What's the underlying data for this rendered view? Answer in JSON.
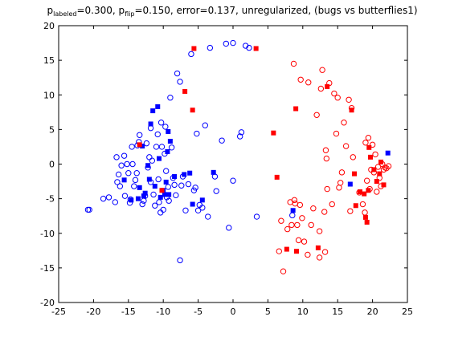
{
  "chart_data": {
    "type": "scatter",
    "title_parts": {
      "p1": "p",
      "sub1": "labeled",
      "mid1": "=0.300, p",
      "sub2": "flip",
      "rest": "=0.150, error=0.137, unregularized, (bugs vs butterflies1)"
    },
    "xlabel": "",
    "ylabel": "",
    "xlim": [
      -25,
      25
    ],
    "ylim": [
      -20,
      20
    ],
    "xticks": [
      -25,
      -20,
      -15,
      -10,
      -5,
      0,
      5,
      10,
      15,
      20,
      25
    ],
    "yticks": [
      -20,
      -15,
      -10,
      -5,
      0,
      5,
      10,
      15,
      20
    ],
    "grid": false,
    "colors": {
      "blue": "#0000ff",
      "red": "#ff0000",
      "axis": "#000000"
    },
    "series": [
      {
        "color": "blue",
        "marker": "open-circle",
        "points": [
          [
            -20.8,
            -6.6
          ],
          [
            -20.6,
            -6.6
          ],
          [
            -18.6,
            -5.0
          ],
          [
            -17.8,
            -4.8
          ],
          [
            -16.9,
            -5.5
          ],
          [
            -16.7,
            1.0
          ],
          [
            -16.6,
            -2.6
          ],
          [
            -16.4,
            -1.5
          ],
          [
            -16.2,
            -3.2
          ],
          [
            -16.0,
            -0.2
          ],
          [
            -15.6,
            1.2
          ],
          [
            -15.5,
            -4.6
          ],
          [
            -15.2,
            0.0
          ],
          [
            -15.0,
            -1.3
          ],
          [
            -14.8,
            -5.6
          ],
          [
            -14.7,
            -5.1
          ],
          [
            -14.5,
            2.5
          ],
          [
            -14.4,
            0.0
          ],
          [
            -14.2,
            -3.2
          ],
          [
            -14.0,
            -2.3
          ],
          [
            -13.8,
            -1.3
          ],
          [
            -13.7,
            2.7
          ],
          [
            -13.5,
            3.2
          ],
          [
            -13.4,
            4.2
          ],
          [
            -13.0,
            -5.8
          ],
          [
            -12.8,
            -5.3
          ],
          [
            -12.6,
            -4.6
          ],
          [
            -12.4,
            3.0
          ],
          [
            -12.2,
            -0.5
          ],
          [
            -12.0,
            1.0
          ],
          [
            -11.8,
            -2.6
          ],
          [
            -11.8,
            5.2
          ],
          [
            -11.6,
            0.5
          ],
          [
            -11.4,
            -4.4
          ],
          [
            -11.2,
            -6.0
          ],
          [
            -11.0,
            2.5
          ],
          [
            -10.8,
            4.3
          ],
          [
            -10.7,
            -2.2
          ],
          [
            -10.6,
            -5.5
          ],
          [
            -10.4,
            -7.0
          ],
          [
            -10.3,
            6.0
          ],
          [
            -10.2,
            2.5
          ],
          [
            -10.0,
            -6.6
          ],
          [
            -9.8,
            1.5
          ],
          [
            -9.7,
            5.4
          ],
          [
            -9.6,
            -1.0
          ],
          [
            -9.5,
            -4.8
          ],
          [
            -9.3,
            -3.3
          ],
          [
            -9.2,
            -5.3
          ],
          [
            -9.0,
            9.6
          ],
          [
            -8.8,
            2.4
          ],
          [
            -8.6,
            -2.0
          ],
          [
            -8.4,
            -3.0
          ],
          [
            -8.2,
            -4.5
          ],
          [
            -8.0,
            13.1
          ],
          [
            -7.6,
            -13.9
          ],
          [
            -7.6,
            11.9
          ],
          [
            -7.4,
            -3.1
          ],
          [
            -7.2,
            -1.8
          ],
          [
            -6.8,
            -6.7
          ],
          [
            -6.4,
            -2.9
          ],
          [
            -6.0,
            15.9
          ],
          [
            -5.6,
            -3.8
          ],
          [
            -5.4,
            -3.4
          ],
          [
            -5.2,
            4.4
          ],
          [
            -5.0,
            -6.7
          ],
          [
            -4.8,
            -5.9
          ],
          [
            -4.4,
            -6.3
          ],
          [
            -4.0,
            5.6
          ],
          [
            -3.6,
            -7.6
          ],
          [
            -3.3,
            16.8
          ],
          [
            -2.6,
            -1.8
          ],
          [
            -2.4,
            -3.9
          ],
          [
            -1.6,
            3.4
          ],
          [
            -1.0,
            17.4
          ],
          [
            -0.6,
            -9.2
          ],
          [
            0.0,
            17.5
          ],
          [
            0.0,
            -2.4
          ],
          [
            1.0,
            4.0
          ],
          [
            1.2,
            4.6
          ],
          [
            1.8,
            17.1
          ],
          [
            2.3,
            16.8
          ],
          [
            3.4,
            -7.6
          ],
          [
            8.5,
            -7.4
          ]
        ]
      },
      {
        "color": "blue",
        "marker": "filled-square",
        "points": [
          [
            -15.6,
            -2.3
          ],
          [
            -14.6,
            -5.2
          ],
          [
            -13.6,
            -5.0
          ],
          [
            -13.4,
            -3.4
          ],
          [
            -13.0,
            2.6
          ],
          [
            -12.8,
            -4.6
          ],
          [
            -12.6,
            -4.2
          ],
          [
            -12.2,
            -0.2
          ],
          [
            -12.0,
            -2.2
          ],
          [
            -11.8,
            5.8
          ],
          [
            -11.5,
            7.7
          ],
          [
            -11.2,
            -3.2
          ],
          [
            -10.8,
            8.3
          ],
          [
            -10.6,
            0.8
          ],
          [
            -10.4,
            -4.8
          ],
          [
            -10.0,
            -3.8
          ],
          [
            -9.8,
            -4.4
          ],
          [
            -9.6,
            -2.6
          ],
          [
            -9.4,
            1.8
          ],
          [
            -9.3,
            4.7
          ],
          [
            -9.2,
            -4.4
          ],
          [
            -9.0,
            3.3
          ],
          [
            -8.4,
            -1.8
          ],
          [
            -7.0,
            -1.5
          ],
          [
            -6.2,
            -1.3
          ],
          [
            -5.8,
            -5.8
          ],
          [
            -4.4,
            -5.2
          ],
          [
            -2.8,
            -1.2
          ],
          [
            8.6,
            -6.7
          ],
          [
            16.8,
            -2.9
          ],
          [
            22.2,
            1.6
          ]
        ]
      },
      {
        "color": "red",
        "marker": "open-circle",
        "points": [
          [
            6.6,
            -12.6
          ],
          [
            6.9,
            -8.2
          ],
          [
            7.2,
            -15.5
          ],
          [
            7.8,
            -9.4
          ],
          [
            8.2,
            -5.5
          ],
          [
            8.4,
            -8.8
          ],
          [
            8.7,
            14.5
          ],
          [
            8.8,
            -5.2
          ],
          [
            8.9,
            -5.7
          ],
          [
            9.2,
            -8.8
          ],
          [
            9.4,
            -11.0
          ],
          [
            9.6,
            -5.9
          ],
          [
            9.7,
            12.2
          ],
          [
            9.9,
            -7.8
          ],
          [
            10.2,
            -11.2
          ],
          [
            10.7,
            -13.1
          ],
          [
            10.8,
            11.8
          ],
          [
            11.2,
            -8.8
          ],
          [
            11.5,
            -6.4
          ],
          [
            12.0,
            7.1
          ],
          [
            12.4,
            -13.5
          ],
          [
            12.4,
            -9.7
          ],
          [
            12.6,
            10.9
          ],
          [
            12.8,
            13.6
          ],
          [
            13.1,
            -6.9
          ],
          [
            13.2,
            -12.7
          ],
          [
            13.3,
            2.0
          ],
          [
            13.4,
            0.8
          ],
          [
            13.5,
            -3.6
          ],
          [
            13.8,
            11.7
          ],
          [
            14.2,
            -5.8
          ],
          [
            14.5,
            10.2
          ],
          [
            14.8,
            4.4
          ],
          [
            15.0,
            9.6
          ],
          [
            15.2,
            -3.4
          ],
          [
            15.4,
            -2.7
          ],
          [
            15.6,
            -1.2
          ],
          [
            15.9,
            6.0
          ],
          [
            16.2,
            2.6
          ],
          [
            16.6,
            9.3
          ],
          [
            16.8,
            -6.8
          ],
          [
            17.0,
            8.1
          ],
          [
            17.2,
            1.0
          ],
          [
            18.1,
            -4.1
          ],
          [
            18.6,
            -5.8
          ],
          [
            18.9,
            -7.0
          ],
          [
            19.0,
            3.1
          ],
          [
            19.2,
            -2.4
          ],
          [
            19.4,
            3.8
          ],
          [
            19.6,
            -3.6
          ],
          [
            19.8,
            -0.8
          ],
          [
            20.0,
            2.8
          ],
          [
            20.2,
            -1.2
          ],
          [
            20.4,
            1.4
          ],
          [
            20.6,
            -4.0
          ],
          [
            20.8,
            -0.4
          ],
          [
            21.0,
            -2.0
          ],
          [
            21.2,
            -3.2
          ],
          [
            21.4,
            0.0
          ],
          [
            21.6,
            -0.8
          ],
          [
            21.8,
            -0.5
          ],
          [
            22.0,
            -0.6
          ],
          [
            22.3,
            -0.3
          ]
        ]
      },
      {
        "color": "red",
        "marker": "filled-square",
        "points": [
          [
            -13.4,
            2.8
          ],
          [
            -10.2,
            -3.8
          ],
          [
            -6.9,
            10.5
          ],
          [
            -5.8,
            7.8
          ],
          [
            -5.6,
            16.7
          ],
          [
            3.3,
            16.7
          ],
          [
            5.8,
            4.5
          ],
          [
            6.3,
            -1.9
          ],
          [
            7.7,
            -12.3
          ],
          [
            9.0,
            8.0
          ],
          [
            9.1,
            -12.6
          ],
          [
            12.2,
            -12.1
          ],
          [
            13.5,
            11.2
          ],
          [
            17.0,
            7.8
          ],
          [
            17.4,
            -1.4
          ],
          [
            17.6,
            -6.0
          ],
          [
            18.2,
            -4.0
          ],
          [
            18.8,
            -4.3
          ],
          [
            19.0,
            -7.7
          ],
          [
            19.2,
            -8.4
          ],
          [
            19.4,
            -3.8
          ],
          [
            19.5,
            2.4
          ],
          [
            19.7,
            1.0
          ],
          [
            20.2,
            -0.8
          ],
          [
            20.6,
            -2.5
          ],
          [
            21.0,
            -1.4
          ],
          [
            21.2,
            0.3
          ],
          [
            21.6,
            -3.0
          ]
        ]
      }
    ]
  }
}
